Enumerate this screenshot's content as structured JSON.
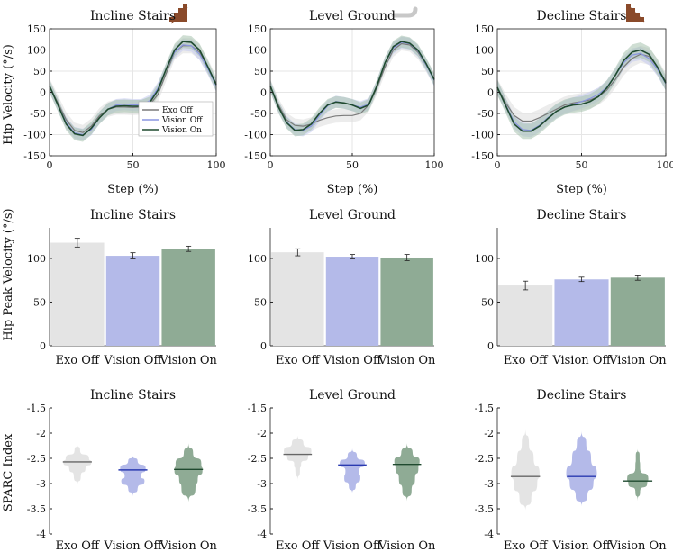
{
  "figure": {
    "row1_ylabel": "Hip Velocity (°/s)",
    "row2_ylabel": "Hip Peak Velocity (°/s)",
    "row3_ylabel": "SPARC Index",
    "condition_icons": [
      "stairs-up-icon",
      "level-ground-icon",
      "stairs-down-icon"
    ]
  },
  "chart_data": [
    {
      "type": "line",
      "title": "Incline Stairs",
      "xlabel": "Step (%)",
      "ylabel": "Hip Velocity (°/s)",
      "xlim": [
        0,
        100
      ],
      "ylim": [
        -150,
        150
      ],
      "xticks": [
        0,
        50,
        100
      ],
      "yticks": [
        -150,
        -100,
        -50,
        0,
        50,
        100,
        150
      ],
      "grid": true,
      "legend_position": "bottom-right",
      "x": [
        0,
        5,
        10,
        15,
        20,
        25,
        30,
        35,
        40,
        45,
        50,
        55,
        60,
        65,
        70,
        75,
        80,
        85,
        90,
        95,
        100
      ],
      "series": [
        {
          "name": "Exo Off",
          "color": "#7a7a7a",
          "band_color": "#dcdcdc",
          "band": 18,
          "values": [
            15,
            -25,
            -65,
            -90,
            -95,
            -80,
            -55,
            -40,
            -35,
            -35,
            -36,
            -35,
            -30,
            -5,
            45,
            95,
            110,
            110,
            95,
            60,
            20
          ]
        },
        {
          "name": "Vision Off",
          "color": "#8a95e0",
          "band_color": "#c5caf0",
          "band": 14,
          "values": [
            15,
            -30,
            -72,
            -96,
            -100,
            -88,
            -60,
            -40,
            -30,
            -28,
            -30,
            -30,
            -20,
            10,
            55,
            95,
            112,
            110,
            90,
            55,
            15
          ]
        },
        {
          "name": "Vision On",
          "color": "#1f4a2f",
          "band_color": "#a8c2ae",
          "band": 15,
          "values": [
            15,
            -30,
            -75,
            -98,
            -102,
            -85,
            -60,
            -40,
            -33,
            -32,
            -33,
            -33,
            -25,
            5,
            55,
            100,
            120,
            118,
            100,
            60,
            18
          ]
        }
      ]
    },
    {
      "type": "line",
      "title": "Level Ground",
      "xlabel": "Step (%)",
      "ylabel": "",
      "xlim": [
        0,
        100
      ],
      "ylim": [
        -150,
        150
      ],
      "xticks": [
        0,
        50,
        100
      ],
      "yticks": [
        -150,
        -100,
        -50,
        0,
        50,
        100,
        150
      ],
      "grid": true,
      "x": [
        0,
        5,
        10,
        15,
        20,
        25,
        30,
        35,
        40,
        45,
        50,
        55,
        60,
        65,
        70,
        75,
        80,
        85,
        90,
        95,
        100
      ],
      "series": [
        {
          "name": "Exo Off",
          "color": "#7a7a7a",
          "band_color": "#dcdcdc",
          "band": 16,
          "values": [
            15,
            -30,
            -65,
            -78,
            -80,
            -75,
            -66,
            -60,
            -56,
            -55,
            -55,
            -50,
            -30,
            10,
            60,
            100,
            115,
            112,
            95,
            65,
            30
          ]
        },
        {
          "name": "Vision Off",
          "color": "#8a95e0",
          "band_color": "#c5caf0",
          "band": 14,
          "values": [
            15,
            -35,
            -70,
            -88,
            -90,
            -80,
            -55,
            -32,
            -22,
            -25,
            -30,
            -35,
            -28,
            15,
            70,
            105,
            118,
            115,
            98,
            65,
            28
          ]
        },
        {
          "name": "Vision On",
          "color": "#1f4a2f",
          "band_color": "#a8c2ae",
          "band": 14,
          "values": [
            15,
            -35,
            -72,
            -90,
            -88,
            -75,
            -50,
            -30,
            -23,
            -25,
            -30,
            -38,
            -30,
            15,
            70,
            108,
            120,
            116,
            100,
            68,
            30
          ]
        }
      ]
    },
    {
      "type": "line",
      "title": "Decline Stairs",
      "xlabel": "Step (%)",
      "ylabel": "",
      "xlim": [
        0,
        100
      ],
      "ylim": [
        -150,
        150
      ],
      "xticks": [
        0,
        50,
        100
      ],
      "yticks": [
        -150,
        -100,
        -50,
        0,
        50,
        100,
        150
      ],
      "grid": true,
      "x": [
        0,
        5,
        10,
        15,
        20,
        25,
        30,
        35,
        40,
        45,
        50,
        55,
        60,
        65,
        70,
        75,
        80,
        85,
        90,
        95,
        100
      ],
      "series": [
        {
          "name": "Exo Off",
          "color": "#7a7a7a",
          "band_color": "#dcdcdc",
          "band": 20,
          "values": [
            12,
            -25,
            -55,
            -68,
            -68,
            -60,
            -50,
            -40,
            -30,
            -25,
            -22,
            -18,
            -10,
            5,
            30,
            60,
            80,
            90,
            85,
            60,
            25
          ]
        },
        {
          "name": "Vision Off",
          "color": "#8a95e0",
          "band_color": "#c5caf0",
          "band": 16,
          "values": [
            12,
            -30,
            -70,
            -88,
            -90,
            -78,
            -60,
            -45,
            -35,
            -28,
            -22,
            -15,
            -5,
            12,
            40,
            70,
            88,
            92,
            80,
            55,
            20
          ]
        },
        {
          "name": "Vision On",
          "color": "#1f4a2f",
          "band_color": "#a8c2ae",
          "band": 18,
          "values": [
            12,
            -32,
            -75,
            -92,
            -92,
            -80,
            -62,
            -45,
            -35,
            -30,
            -28,
            -22,
            -10,
            10,
            40,
            75,
            95,
            100,
            90,
            60,
            22
          ]
        }
      ]
    },
    {
      "type": "bar",
      "title": "Incline Stairs",
      "ylabel": "Hip Peak Velocity (°/s)",
      "ylim": [
        0,
        135
      ],
      "yticks": [
        0,
        50,
        100
      ],
      "categories": [
        "Exo Off",
        "Vision Off",
        "Vision On"
      ],
      "colors": [
        "#e4e4e4",
        "#b4bae9",
        "#8fab95"
      ],
      "values": [
        118,
        103,
        111
      ],
      "errors": [
        5,
        3.5,
        3
      ]
    },
    {
      "type": "bar",
      "title": "Level Ground",
      "ylabel": "",
      "ylim": [
        0,
        135
      ],
      "yticks": [
        0,
        50,
        100
      ],
      "categories": [
        "Exo Off",
        "Vision Off",
        "Vision On"
      ],
      "colors": [
        "#e4e4e4",
        "#b4bae9",
        "#8fab95"
      ],
      "values": [
        107,
        102,
        101
      ],
      "errors": [
        4,
        2.5,
        3.5
      ]
    },
    {
      "type": "bar",
      "title": "Decline Stairs",
      "ylabel": "",
      "ylim": [
        0,
        135
      ],
      "yticks": [
        0,
        50,
        100
      ],
      "categories": [
        "Exo Off",
        "Vision Off",
        "Vision On"
      ],
      "colors": [
        "#e4e4e4",
        "#b4bae9",
        "#8fab95"
      ],
      "values": [
        69,
        76,
        78
      ],
      "errors": [
        5,
        2.5,
        3
      ]
    },
    {
      "type": "violin",
      "title": "Incline Stairs",
      "ylabel": "SPARC Index",
      "ylim": [
        -4,
        -1.5
      ],
      "yticks": [
        -1.5,
        -2,
        -2.5,
        -3,
        -3.5,
        -4
      ],
      "categories": [
        "Exo Off",
        "Vision Off",
        "Vision On"
      ],
      "colors": [
        "#e4e4e4",
        "#b4bae9",
        "#8fab95"
      ],
      "median_colors": [
        "#666666",
        "#2a3ab0",
        "#1f4a2f"
      ],
      "medians": [
        -2.57,
        -2.73,
        -2.72
      ],
      "profiles": [
        [
          [
            -2.2,
            0
          ],
          [
            -2.35,
            0.12
          ],
          [
            -2.5,
            0.5
          ],
          [
            -2.58,
            0.6
          ],
          [
            -2.7,
            0.35
          ],
          [
            -2.85,
            0.15
          ],
          [
            -3.05,
            0
          ]
        ],
        [
          [
            -2.45,
            0
          ],
          [
            -2.55,
            0.2
          ],
          [
            -2.7,
            0.55
          ],
          [
            -2.85,
            0.35
          ],
          [
            -2.95,
            0.5
          ],
          [
            -3.1,
            0.2
          ],
          [
            -3.25,
            0
          ]
        ],
        [
          [
            -2.2,
            0
          ],
          [
            -2.4,
            0.2
          ],
          [
            -2.6,
            0.55
          ],
          [
            -2.75,
            0.6
          ],
          [
            -2.9,
            0.4
          ],
          [
            -3.1,
            0.3
          ],
          [
            -3.38,
            0
          ]
        ]
      ]
    },
    {
      "type": "violin",
      "title": "Level Ground",
      "ylabel": "",
      "ylim": [
        -4,
        -1.5
      ],
      "yticks": [
        -1.5,
        -2,
        -2.5,
        -3,
        -3.5,
        -4
      ],
      "categories": [
        "Exo Off",
        "Vision Off",
        "Vision On"
      ],
      "colors": [
        "#e4e4e4",
        "#b4bae9",
        "#8fab95"
      ],
      "median_colors": [
        "#666666",
        "#2a3ab0",
        "#1f4a2f"
      ],
      "medians": [
        -2.42,
        -2.63,
        -2.62
      ],
      "profiles": [
        [
          [
            -2.05,
            0
          ],
          [
            -2.2,
            0.25
          ],
          [
            -2.35,
            0.6
          ],
          [
            -2.5,
            0.45
          ],
          [
            -2.6,
            0.15
          ],
          [
            -2.75,
            0.1
          ],
          [
            -2.95,
            0
          ]
        ],
        [
          [
            -2.3,
            0
          ],
          [
            -2.45,
            0.2
          ],
          [
            -2.6,
            0.55
          ],
          [
            -2.75,
            0.3
          ],
          [
            -2.9,
            0.35
          ],
          [
            -3.05,
            0.15
          ],
          [
            -3.2,
            0
          ]
        ],
        [
          [
            -2.2,
            0
          ],
          [
            -2.4,
            0.25
          ],
          [
            -2.55,
            0.55
          ],
          [
            -2.7,
            0.5
          ],
          [
            -2.9,
            0.35
          ],
          [
            -3.15,
            0.2
          ],
          [
            -3.35,
            0
          ]
        ]
      ]
    },
    {
      "type": "violin",
      "title": "Decline Stairs",
      "ylabel": "",
      "ylim": [
        -4,
        -1.5
      ],
      "yticks": [
        -1.5,
        -2,
        -2.5,
        -3,
        -3.5,
        -4
      ],
      "categories": [
        "Exo Off",
        "Vision Off",
        "Vision On"
      ],
      "colors": [
        "#e4e4e4",
        "#b4bae9",
        "#8fab95"
      ],
      "median_colors": [
        "#666666",
        "#2a3ab0",
        "#1f4a2f"
      ],
      "medians": [
        -2.86,
        -2.86,
        -2.95
      ],
      "profiles": [
        [
          [
            -1.9,
            0
          ],
          [
            -2.2,
            0.15
          ],
          [
            -2.5,
            0.35
          ],
          [
            -2.8,
            0.6
          ],
          [
            -3.0,
            0.5
          ],
          [
            -3.3,
            0.25
          ],
          [
            -3.55,
            0
          ]
        ],
        [
          [
            -1.95,
            0
          ],
          [
            -2.2,
            0.2
          ],
          [
            -2.5,
            0.4
          ],
          [
            -2.8,
            0.65
          ],
          [
            -3.0,
            0.5
          ],
          [
            -3.25,
            0.25
          ],
          [
            -3.45,
            0
          ]
        ],
        [
          [
            -2.3,
            0
          ],
          [
            -2.45,
            0.08
          ],
          [
            -2.7,
            0.1
          ],
          [
            -2.9,
            0.45
          ],
          [
            -3.0,
            0.4
          ],
          [
            -3.15,
            0.1
          ],
          [
            -3.35,
            0
          ]
        ]
      ]
    }
  ]
}
